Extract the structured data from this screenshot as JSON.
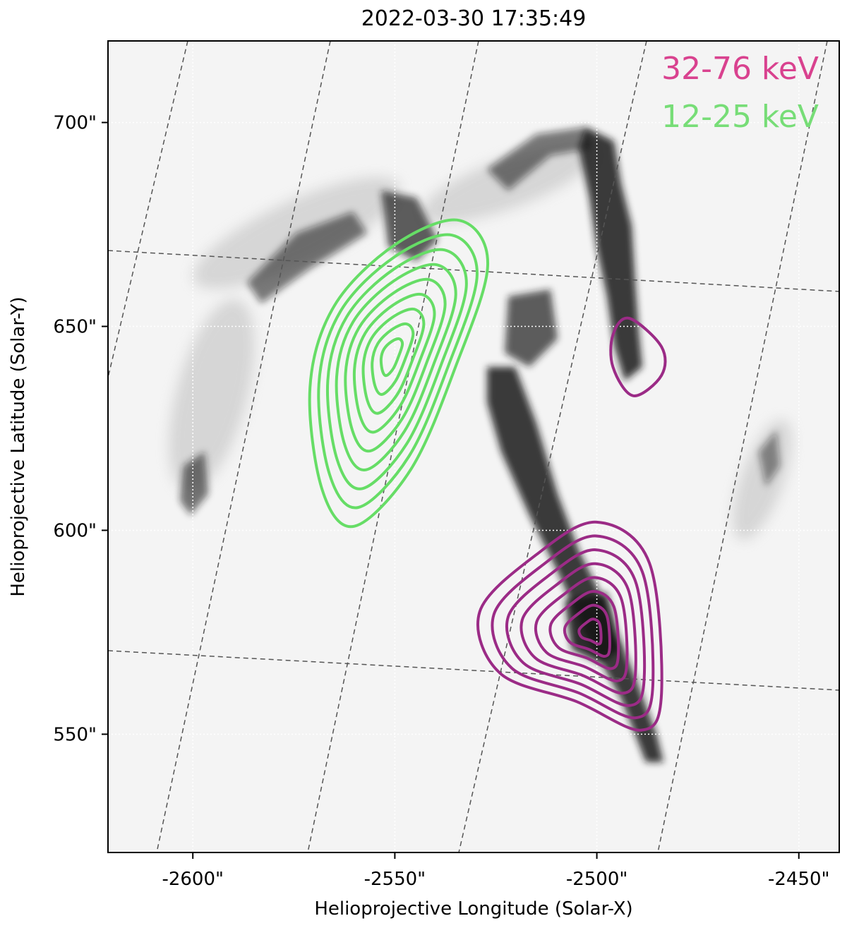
{
  "chart_data": {
    "type": "contour",
    "title": "2022-03-30 17:35:49",
    "xlabel": "Helioprojective Longitude (Solar-X)",
    "ylabel": "Helioprojective Latitude (Solar-Y)",
    "xlim": [
      -2621,
      -2440
    ],
    "ylim": [
      521,
      720
    ],
    "x_ticks": [
      -2600,
      -2550,
      -2500,
      -2450
    ],
    "x_tick_labels": [
      "-2600\"",
      "-2550\"",
      "-2500\"",
      "-2450\""
    ],
    "y_ticks": [
      550,
      600,
      650,
      700
    ],
    "y_tick_labels": [
      "550\"",
      "600\"",
      "650\"",
      "700\""
    ],
    "colormap": "gray_r",
    "grid": true,
    "series": [
      {
        "name": "32-76 keV",
        "color": "#9b2b86",
        "label_color": "#d9428f",
        "sources": [
          {
            "center": [
              -2501,
              575
            ],
            "levels": 8,
            "outer_extent_x": [
              -2530,
              -2484
            ],
            "outer_extent_y": [
              550,
              602
            ]
          },
          {
            "center": [
              -2493,
              643
            ],
            "levels": 1,
            "outer_extent_x": [
              -2497,
              -2482
            ],
            "outer_extent_y": [
              633,
              652
            ]
          }
        ]
      },
      {
        "name": "12-25 keV",
        "color": "#66dd66",
        "label_color": "#77dd77",
        "sources": [
          {
            "center": [
              -2551,
              643
            ],
            "levels": 9,
            "outer_extent_x": [
              -2570,
              -2527
            ],
            "outer_extent_y": [
              600,
              677
            ]
          }
        ]
      }
    ]
  }
}
